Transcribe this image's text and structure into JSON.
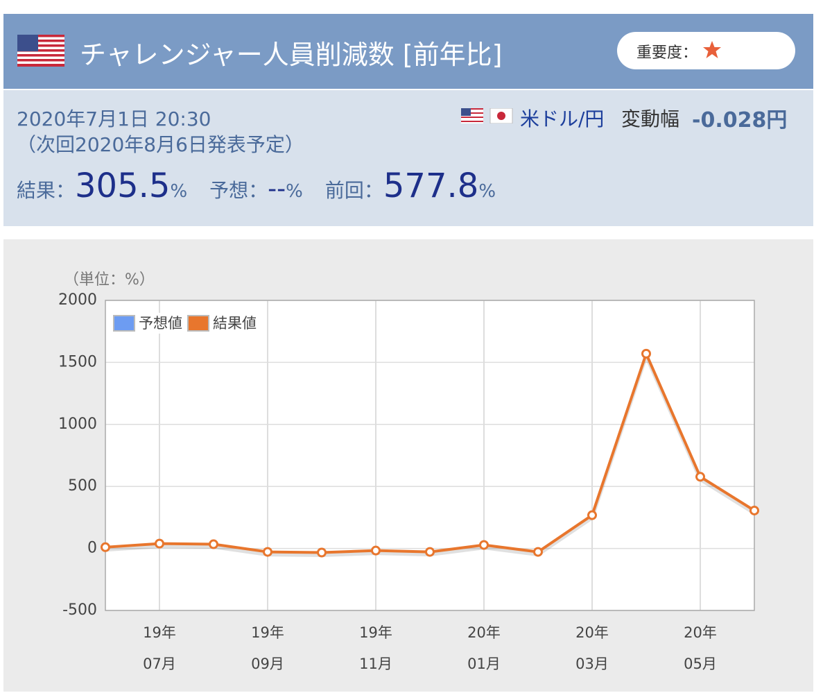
{
  "header": {
    "title": "チャレンジャー人員削減数 [前年比]",
    "importance_label": "重要度："
  },
  "info": {
    "datetime": "2020年7月1日 20:30",
    "next_release": "（次回2020年8月6日発表予定）",
    "pair": "米ドル/円",
    "change_label": "変動幅",
    "change_value": "-0.028円",
    "results": [
      {
        "label": "結果：",
        "value": "305.5",
        "unit": "%"
      },
      {
        "label": "予想：",
        "value": "--",
        "unit": "%"
      },
      {
        "label": "前回：",
        "value": "577.8",
        "unit": "%"
      }
    ]
  },
  "chart_data": {
    "type": "line",
    "unit_label": "（単位：%）",
    "categories": [
      null,
      "19年\n07月",
      null,
      "19年\n09月",
      null,
      "19年\n11月",
      null,
      "20年\n01月",
      null,
      "20年\n03月",
      null,
      "20年\n05月",
      null
    ],
    "series": [
      {
        "name": "予想値",
        "color": "#6d9cf2",
        "values": [
          null,
          null,
          null,
          null,
          null,
          null,
          null,
          null,
          null,
          null,
          null,
          null,
          null
        ]
      },
      {
        "name": "結果値",
        "color": "#e8762d",
        "values": [
          10,
          39,
          34,
          -28,
          -33,
          -17,
          -28,
          28,
          -28,
          268,
          1570,
          577.8,
          305.5
        ]
      }
    ],
    "ylim": [
      -500,
      2000
    ],
    "yticks": [
      -500,
      0,
      500,
      1000,
      1500,
      2000
    ],
    "grid": true,
    "legend": "top-left"
  }
}
